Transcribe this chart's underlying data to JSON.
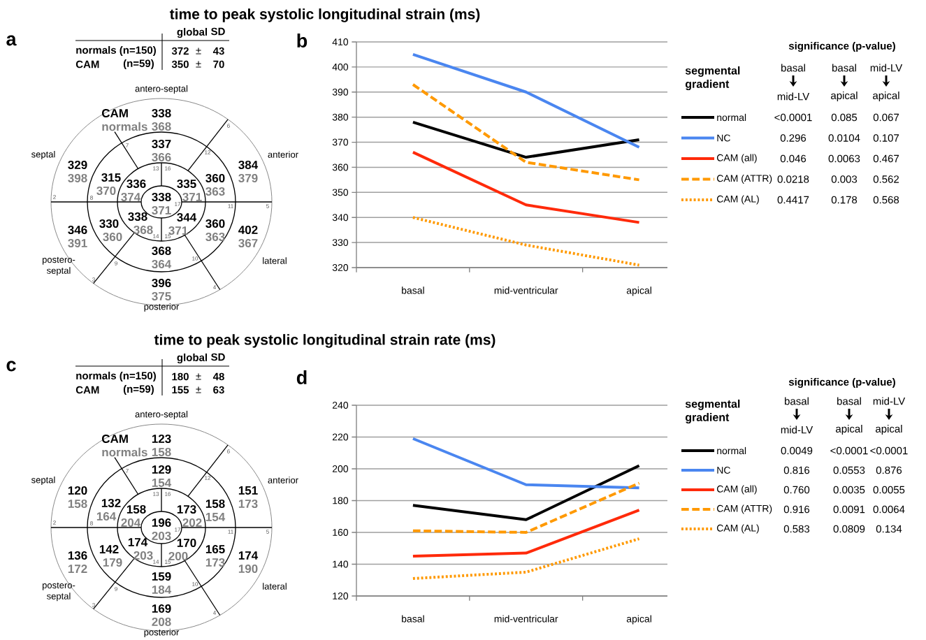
{
  "chart_data": [
    {
      "type": "other",
      "title": "time to peak systolic longitudinal strain (ms)",
      "annotations": [
        "a",
        "global",
        "SD",
        "normals (n=150)",
        "372",
        "±",
        "43",
        "CAM",
        "(n=59)",
        "350",
        "±",
        "70",
        "antero-septal",
        "anterior",
        "lateral",
        "posterior",
        "postero-septal",
        "septal",
        "2",
        "3",
        "4",
        "5",
        "6",
        "7",
        "8",
        "9",
        "10",
        "11",
        "12",
        "13",
        "14",
        "15",
        "16",
        "17",
        "CAM",
        "normals",
        "338",
        "384",
        "402",
        "396",
        "346",
        "329",
        "337",
        "360",
        "360",
        "368",
        "330",
        "315",
        "335",
        "344",
        "338",
        "336",
        "338",
        "368",
        "379",
        "367",
        "375",
        "391",
        "398",
        "366",
        "363",
        "363",
        "364",
        "360",
        "370",
        "371",
        "371",
        "368",
        "374",
        "371"
      ]
    },
    {
      "type": "line",
      "categories": [
        "basal",
        "mid-ventricular",
        "apical"
      ],
      "ylim": [
        320,
        410
      ],
      "yticks": [
        320,
        330,
        340,
        350,
        360,
        370,
        380,
        390,
        400,
        410
      ],
      "grid": "y",
      "legend": "right",
      "annotations": [
        "b",
        "significance (p-value)",
        "segmental gradient",
        "basal",
        "mid-LV",
        "basal",
        "apical",
        "mid-LV",
        "apical",
        "<0.0001",
        "0.085",
        "0.067",
        "0.296",
        "0.0104",
        "0.107",
        "0.046",
        "0.0063",
        "0.467",
        "0.0218",
        "0.003",
        "0.562",
        "0.4417",
        "0.178",
        "0.568"
      ],
      "series": [
        {
          "name": "normal",
          "color": "#000000",
          "line_style": "solid",
          "values": [
            378,
            364,
            371
          ]
        },
        {
          "name": "NC",
          "color": "#4a86f0",
          "line_style": "solid",
          "values": [
            405,
            390,
            368
          ]
        },
        {
          "name": "CAM (all)",
          "color": "#ff2a0a",
          "line_style": "solid",
          "values": [
            366,
            345,
            338
          ]
        },
        {
          "name": "CAM (ATTR)",
          "color": "#ff9900",
          "line_style": "dashed",
          "values": [
            393,
            362,
            355
          ]
        },
        {
          "name": "CAM (AL)",
          "color": "#ff9900",
          "line_style": "dotted",
          "values": [
            340,
            329,
            321
          ]
        }
      ]
    },
    {
      "type": "other",
      "title": "time to peak systolic longitudinal strain rate (ms)",
      "annotations": [
        "c",
        "global",
        "SD",
        "normals (n=150)",
        "180",
        "±",
        "48",
        "CAM",
        "(n=59)",
        "155",
        "±",
        "63",
        "antero-septal",
        "anterior",
        "lateral",
        "posterior",
        "postero-septal",
        "septal",
        "2",
        "3",
        "4",
        "5",
        "6",
        "7",
        "8",
        "9",
        "10",
        "11",
        "12",
        "13",
        "14",
        "15",
        "16",
        "17",
        "CAM",
        "normals",
        "123",
        "151",
        "174",
        "169",
        "136",
        "120",
        "129",
        "158",
        "165",
        "159",
        "142",
        "132",
        "173",
        "170",
        "174",
        "158",
        "196",
        "158",
        "173",
        "190",
        "208",
        "172",
        "158",
        "154",
        "154",
        "173",
        "184",
        "179",
        "164",
        "202",
        "200",
        "203",
        "204",
        "203"
      ]
    },
    {
      "type": "line",
      "categories": [
        "basal",
        "mid-ventricular",
        "apical"
      ],
      "ylim": [
        120,
        240
      ],
      "yticks": [
        120,
        140,
        160,
        180,
        200,
        220,
        240
      ],
      "grid": "y",
      "legend": "right",
      "annotations": [
        "d",
        "significance (p-value)",
        "segmental gradient",
        "basal",
        "mid-LV",
        "basal",
        "apical",
        "mid-LV",
        "apical",
        "0.0049",
        "<0.0001",
        "<0.0001",
        "0.816",
        "0.0553",
        "0.876",
        "0.760",
        "0.0035",
        "0.0055",
        "0.916",
        "0.0091",
        "0.0064",
        "0.583",
        "0.0809",
        "0.134"
      ],
      "series": [
        {
          "name": "normal",
          "color": "#000000",
          "line_style": "solid",
          "values": [
            177,
            168,
            202
          ]
        },
        {
          "name": "NC",
          "color": "#4a86f0",
          "line_style": "solid",
          "values": [
            219,
            190,
            188
          ]
        },
        {
          "name": "CAM (all)",
          "color": "#ff2a0a",
          "line_style": "solid",
          "values": [
            145,
            147,
            174
          ]
        },
        {
          "name": "CAM (ATTR)",
          "color": "#ff9900",
          "line_style": "dashed",
          "values": [
            161,
            160,
            191
          ]
        },
        {
          "name": "CAM (AL)",
          "color": "#ff9900",
          "line_style": "dotted",
          "values": [
            131,
            135,
            156
          ]
        }
      ]
    }
  ]
}
